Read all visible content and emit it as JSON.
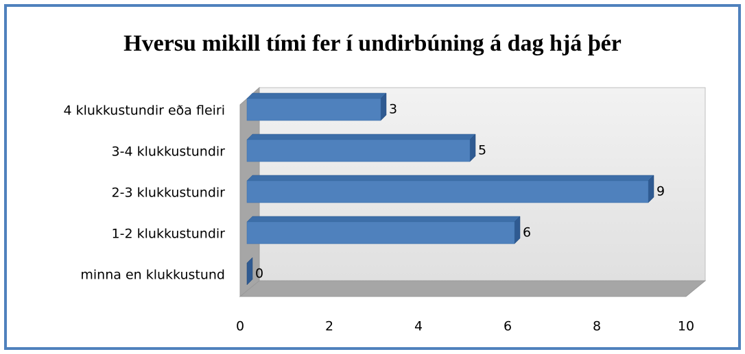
{
  "chart_data": {
    "type": "bar",
    "orientation": "horizontal",
    "title": "Hversu  mikill tími fer í undirbúning á dag hjá þér",
    "categories": [
      "minna en klukkustund",
      "1-2 klukkustundir",
      "2-3 klukkustundir",
      "3-4 klukkustundir",
      "4 klukkustundir eða fleiri"
    ],
    "values": [
      0,
      6,
      9,
      5,
      3
    ],
    "color": "#4f81bd",
    "xlim": [
      0,
      10
    ],
    "xticks": [
      0,
      2,
      4,
      6,
      8,
      10
    ],
    "grid": false
  }
}
